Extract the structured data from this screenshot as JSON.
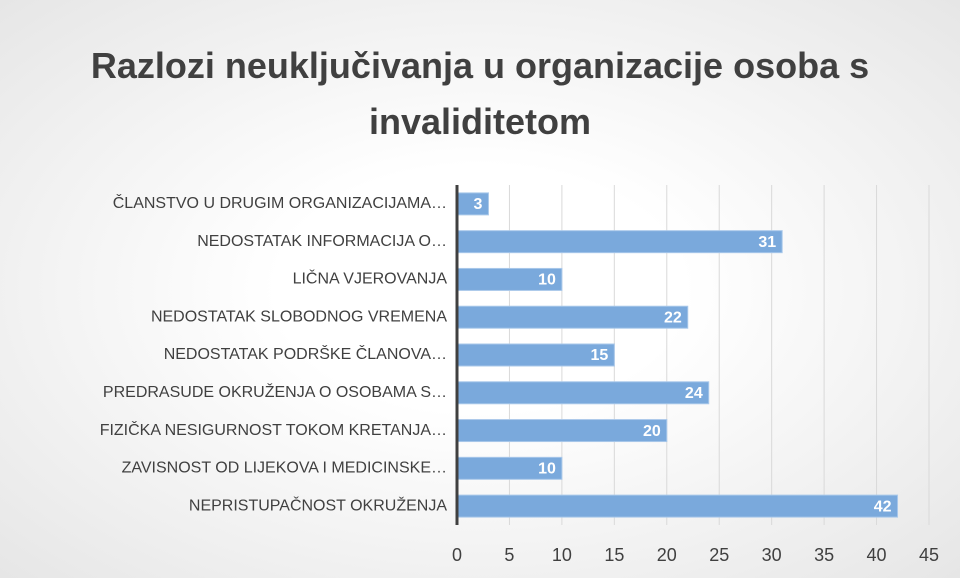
{
  "chart_data": {
    "type": "barh",
    "title": "Razlozi neuključivanja u organizacije osoba s invaliditetom",
    "categories": [
      "ČLANSTVO U DRUGIM ORGANIZACIJAMA…",
      "NEDOSTATAK INFORMACIJA O…",
      "LIČNA VJEROVANJA",
      "NEDOSTATAK SLOBODNOG VREMENA",
      "NEDOSTATAK PODRŠKE ČLANOVA…",
      "PREDRASUDE OKRUŽENJA O OSOBAMA S…",
      "FIZIČKA NESIGURNOST TOKOM KRETANJA…",
      "ZAVISNOST OD LIJEKOVA I MEDICINSKE…",
      "NEPRISTUPAČNOST OKRUŽENJA"
    ],
    "values": [
      3,
      31,
      10,
      22,
      15,
      24,
      20,
      10,
      42
    ],
    "color": "#7aa9dc",
    "xlim": [
      0,
      45
    ],
    "xticks": [
      0,
      5,
      10,
      15,
      20,
      25,
      30,
      35,
      40,
      45
    ],
    "grid": true
  }
}
